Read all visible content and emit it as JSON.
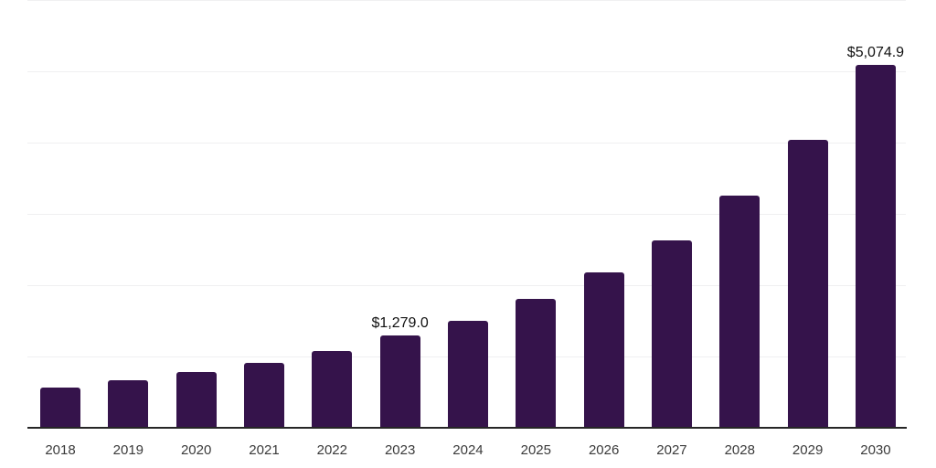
{
  "chart_data": {
    "type": "bar",
    "title": "",
    "xlabel": "",
    "ylabel": "",
    "categories": [
      "2018",
      "2019",
      "2020",
      "2021",
      "2022",
      "2023",
      "2024",
      "2025",
      "2026",
      "2027",
      "2028",
      "2029",
      "2030"
    ],
    "values": [
      550,
      650,
      770,
      900,
      1070,
      1279.0,
      1490,
      1790,
      2170,
      2620,
      3250,
      4030,
      5074.9
    ],
    "value_labels": [
      "",
      "",
      "",
      "",
      "",
      "$1,279.0",
      "",
      "",
      "",
      "",
      "",
      "",
      "$5,074.9"
    ],
    "ylim": [
      0,
      6000
    ],
    "gridline_interval": 1000,
    "grid": "horizontal-only",
    "legend_position": "none",
    "colors": {
      "bar": "#35134b",
      "axis_line": "#262626",
      "gridline": "#f0f0f1",
      "tick_label": "#3a3a3a",
      "value_label": "#111111",
      "background": "#ffffff"
    }
  }
}
